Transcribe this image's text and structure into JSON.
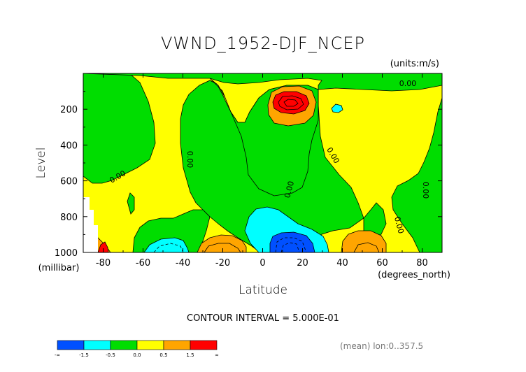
{
  "chart_data": {
    "type": "heatmap",
    "title": "VWND_1952-DJF_NCEP",
    "units": "(units:m/s)",
    "xlabel": "Latitude",
    "x_units": "(degrees_north)",
    "ylabel": "Level",
    "y_units": "(millibar)",
    "xlim": [
      -90,
      90
    ],
    "ylim": [
      1000,
      0
    ],
    "x_ticks": [
      -80,
      -60,
      -40,
      -20,
      0,
      20,
      40,
      60,
      80
    ],
    "x_tick_labels": [
      "-80",
      "-60",
      "-40",
      "-20",
      "0",
      "20",
      "40",
      "60",
      "80"
    ],
    "y_ticks": [
      200,
      400,
      600,
      800,
      1000
    ],
    "y_tick_labels": [
      "200",
      "400",
      "600",
      "800",
      "1000"
    ],
    "contour_interval_text": "CONTOUR INTERVAL = 5.000E-01",
    "mean_text": "(mean) lon:0..357.5",
    "contour_labels": [
      "0.00",
      "0.00",
      "0.00",
      "0.00",
      "0.00",
      "0.00",
      "0.00"
    ],
    "colorbar": {
      "levels": [
        "-∞",
        "-1.5",
        "-0.5",
        "0.0",
        "0.5",
        "1.5",
        "∞"
      ],
      "colors": [
        "#0050ff",
        "#00ffff",
        "#00dd00",
        "#ffff00",
        "#ffa500",
        "#ff0000"
      ]
    },
    "features": [
      {
        "region": "upper-level maximum near 10N, 150 mb",
        "value_range": ">1.5",
        "color": "#ff0000"
      },
      {
        "region": "surface minimum near 10N, 1000 mb",
        "value_range": "<-1.5",
        "color": "#0050ff"
      }
    ]
  }
}
